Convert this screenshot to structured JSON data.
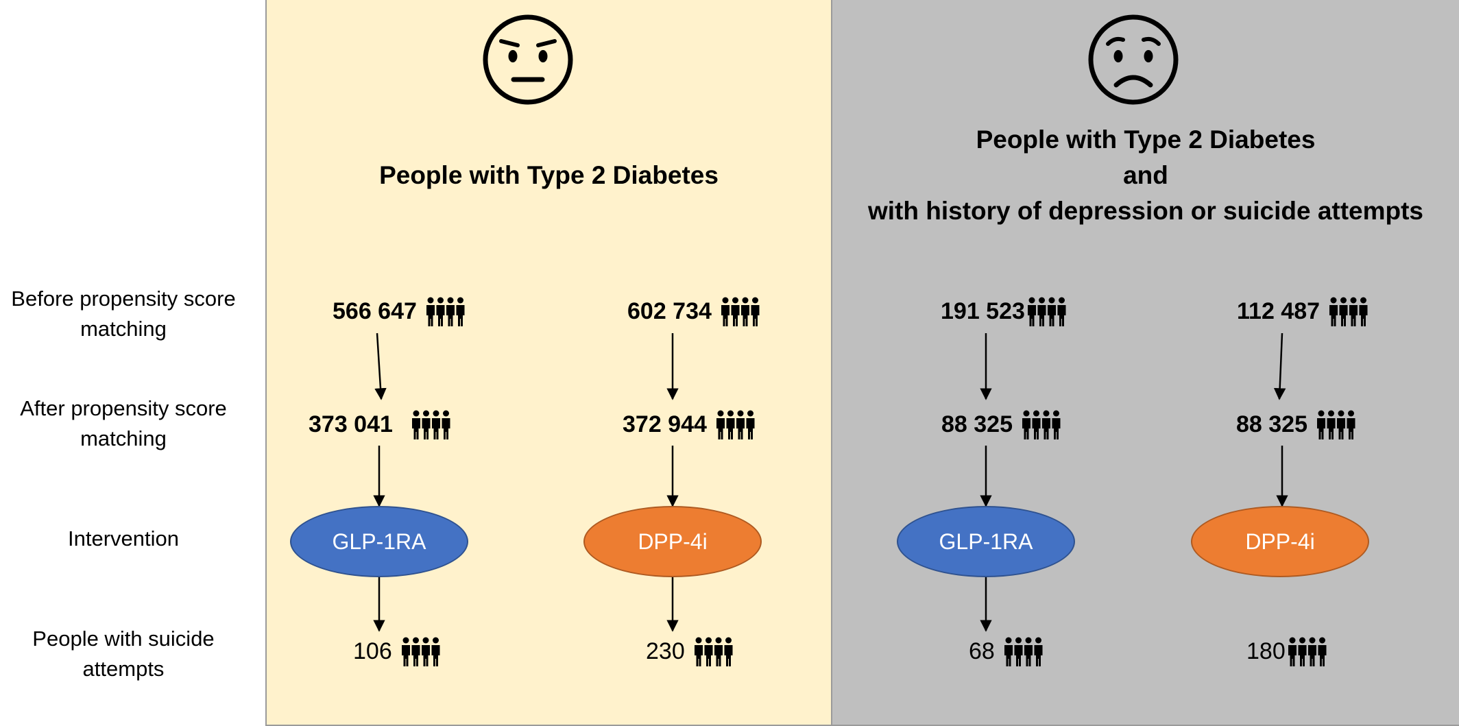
{
  "row_labels": {
    "before": "Before propensity score matching",
    "after": "After propensity score matching",
    "intervention": "Intervention",
    "suicide": "People with suicide attempts"
  },
  "left_panel": {
    "face_icon": "neutral-face-icon",
    "title": "People with Type 2 Diabetes",
    "glp": {
      "before": "566 647",
      "after": "373 041",
      "intervention": "GLP-1RA",
      "suicide": "106"
    },
    "dpp": {
      "before": "602 734",
      "after": "372 944",
      "intervention": "DPP-4i",
      "suicide": "230"
    }
  },
  "right_panel": {
    "face_icon": "worried-face-icon",
    "title_line1": "People with Type 2 Diabetes",
    "title_line2": "and",
    "title_line3": "with history of depression or suicide attempts",
    "glp": {
      "before": "191 523",
      "after": "88 325",
      "intervention": "GLP-1RA",
      "suicide": "68"
    },
    "dpp": {
      "before": "112 487",
      "after": "88 325",
      "intervention": "DPP-4i",
      "suicide": "180"
    }
  },
  "icons": {
    "people": "people-group-icon"
  },
  "colors": {
    "left_panel_bg": "#fff2cc",
    "right_panel_bg": "#bfbfbf",
    "glp_oval": "#4472c4",
    "dpp_oval": "#ed7d31"
  }
}
